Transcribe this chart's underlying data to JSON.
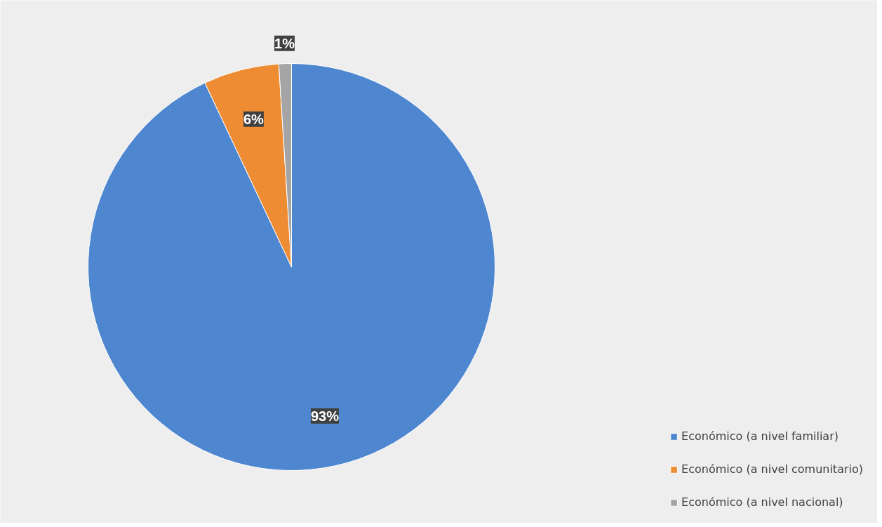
{
  "chart_data": {
    "type": "pie",
    "categories": [
      "Económico (a nivel familiar)",
      "Económico (a nivel comunitario)",
      "Económico (a nivel nacional)"
    ],
    "values": [
      93,
      6,
      1
    ],
    "colors": [
      "#4f86d0",
      "#ee8c34",
      "#a5a5a5"
    ],
    "value_labels": [
      "93%",
      "6%",
      "1%"
    ],
    "legend": "bottom right"
  }
}
